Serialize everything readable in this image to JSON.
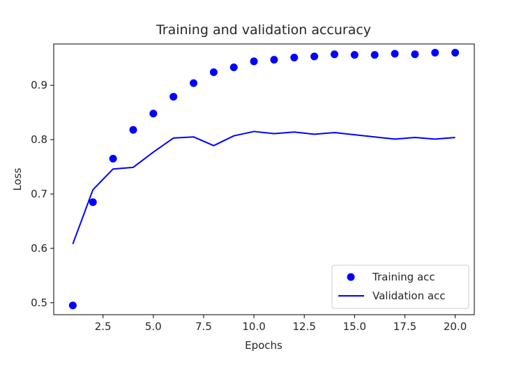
{
  "chart_data": {
    "type": "line",
    "title": "Training and validation accuracy",
    "xlabel": "Epochs",
    "ylabel": "Loss",
    "xlim": [
      0.05,
      20.95
    ],
    "ylim": [
      0.478,
      0.976
    ],
    "x_ticks": [
      2.5,
      5.0,
      7.5,
      10.0,
      12.5,
      15.0,
      17.5,
      20.0
    ],
    "x_tick_labels": [
      "2.5",
      "5.0",
      "7.5",
      "10.0",
      "12.5",
      "15.0",
      "17.5",
      "20.0"
    ],
    "y_ticks": [
      0.5,
      0.6,
      0.7,
      0.8,
      0.9
    ],
    "y_tick_labels": [
      "0.5",
      "0.6",
      "0.7",
      "0.8",
      "0.9"
    ],
    "grid": false,
    "legend_position": "lower-right",
    "x": [
      1,
      2,
      3,
      4,
      5,
      6,
      7,
      8,
      9,
      10,
      11,
      12,
      13,
      14,
      15,
      16,
      17,
      18,
      19,
      20
    ],
    "series": [
      {
        "name": "Training acc",
        "style": "markers",
        "color": "#0000ff",
        "values": [
          0.495,
          0.685,
          0.765,
          0.818,
          0.848,
          0.879,
          0.904,
          0.924,
          0.933,
          0.944,
          0.947,
          0.951,
          0.953,
          0.957,
          0.956,
          0.956,
          0.958,
          0.957,
          0.96,
          0.96
        ]
      },
      {
        "name": "Validation acc",
        "style": "line",
        "color": "#0000ff",
        "values": [
          0.608,
          0.708,
          0.746,
          0.749,
          0.777,
          0.803,
          0.805,
          0.789,
          0.807,
          0.815,
          0.811,
          0.814,
          0.81,
          0.813,
          0.809,
          0.805,
          0.801,
          0.804,
          0.801,
          0.804
        ]
      }
    ]
  }
}
